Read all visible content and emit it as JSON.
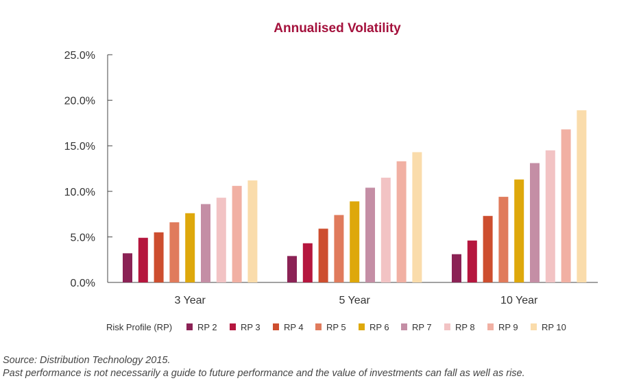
{
  "chart_data": {
    "type": "bar",
    "title": "Annualised Volatility",
    "categories": [
      "3 Year",
      "5 Year",
      "10 Year"
    ],
    "ylim": [
      0,
      25
    ],
    "yticks": [
      "0.0%",
      "5.0%",
      "10.0%",
      "15.0%",
      "20.0%",
      "25.0%"
    ],
    "ytick_values": [
      0,
      5,
      10,
      15,
      20,
      25
    ],
    "grid": false,
    "legend_title": "Risk Profile (RP)",
    "legend_position": "bottom",
    "series": [
      {
        "name": "RP 2",
        "color": "#8b2255",
        "values": [
          3.2,
          2.9,
          3.1
        ]
      },
      {
        "name": "RP 3",
        "color": "#b5163e",
        "values": [
          4.9,
          4.3,
          4.6
        ]
      },
      {
        "name": "RP 4",
        "color": "#cd4e2f",
        "values": [
          5.5,
          5.9,
          7.3
        ]
      },
      {
        "name": "RP 5",
        "color": "#e07b5c",
        "values": [
          6.6,
          7.4,
          9.4
        ]
      },
      {
        "name": "RP 6",
        "color": "#dea80b",
        "values": [
          7.6,
          8.9,
          11.3
        ]
      },
      {
        "name": "RP 7",
        "color": "#c48ea5",
        "values": [
          8.6,
          10.4,
          13.1
        ]
      },
      {
        "name": "RP 8",
        "color": "#f2c3c4",
        "values": [
          9.3,
          11.5,
          14.5
        ]
      },
      {
        "name": "RP 9",
        "color": "#f1b0a3",
        "values": [
          10.6,
          13.3,
          16.8
        ]
      },
      {
        "name": "RP 10",
        "color": "#fadcab",
        "values": [
          11.2,
          14.3,
          18.9
        ]
      }
    ]
  },
  "footnotes": {
    "source": "Source: Distribution Technology 2015.",
    "disclaimer": "Past performance is not necessarily a guide to future performance and the value of investments can fall as well as rise."
  },
  "colors": {
    "title": "#a4113c",
    "axis": "#444444",
    "text": "#333333"
  }
}
